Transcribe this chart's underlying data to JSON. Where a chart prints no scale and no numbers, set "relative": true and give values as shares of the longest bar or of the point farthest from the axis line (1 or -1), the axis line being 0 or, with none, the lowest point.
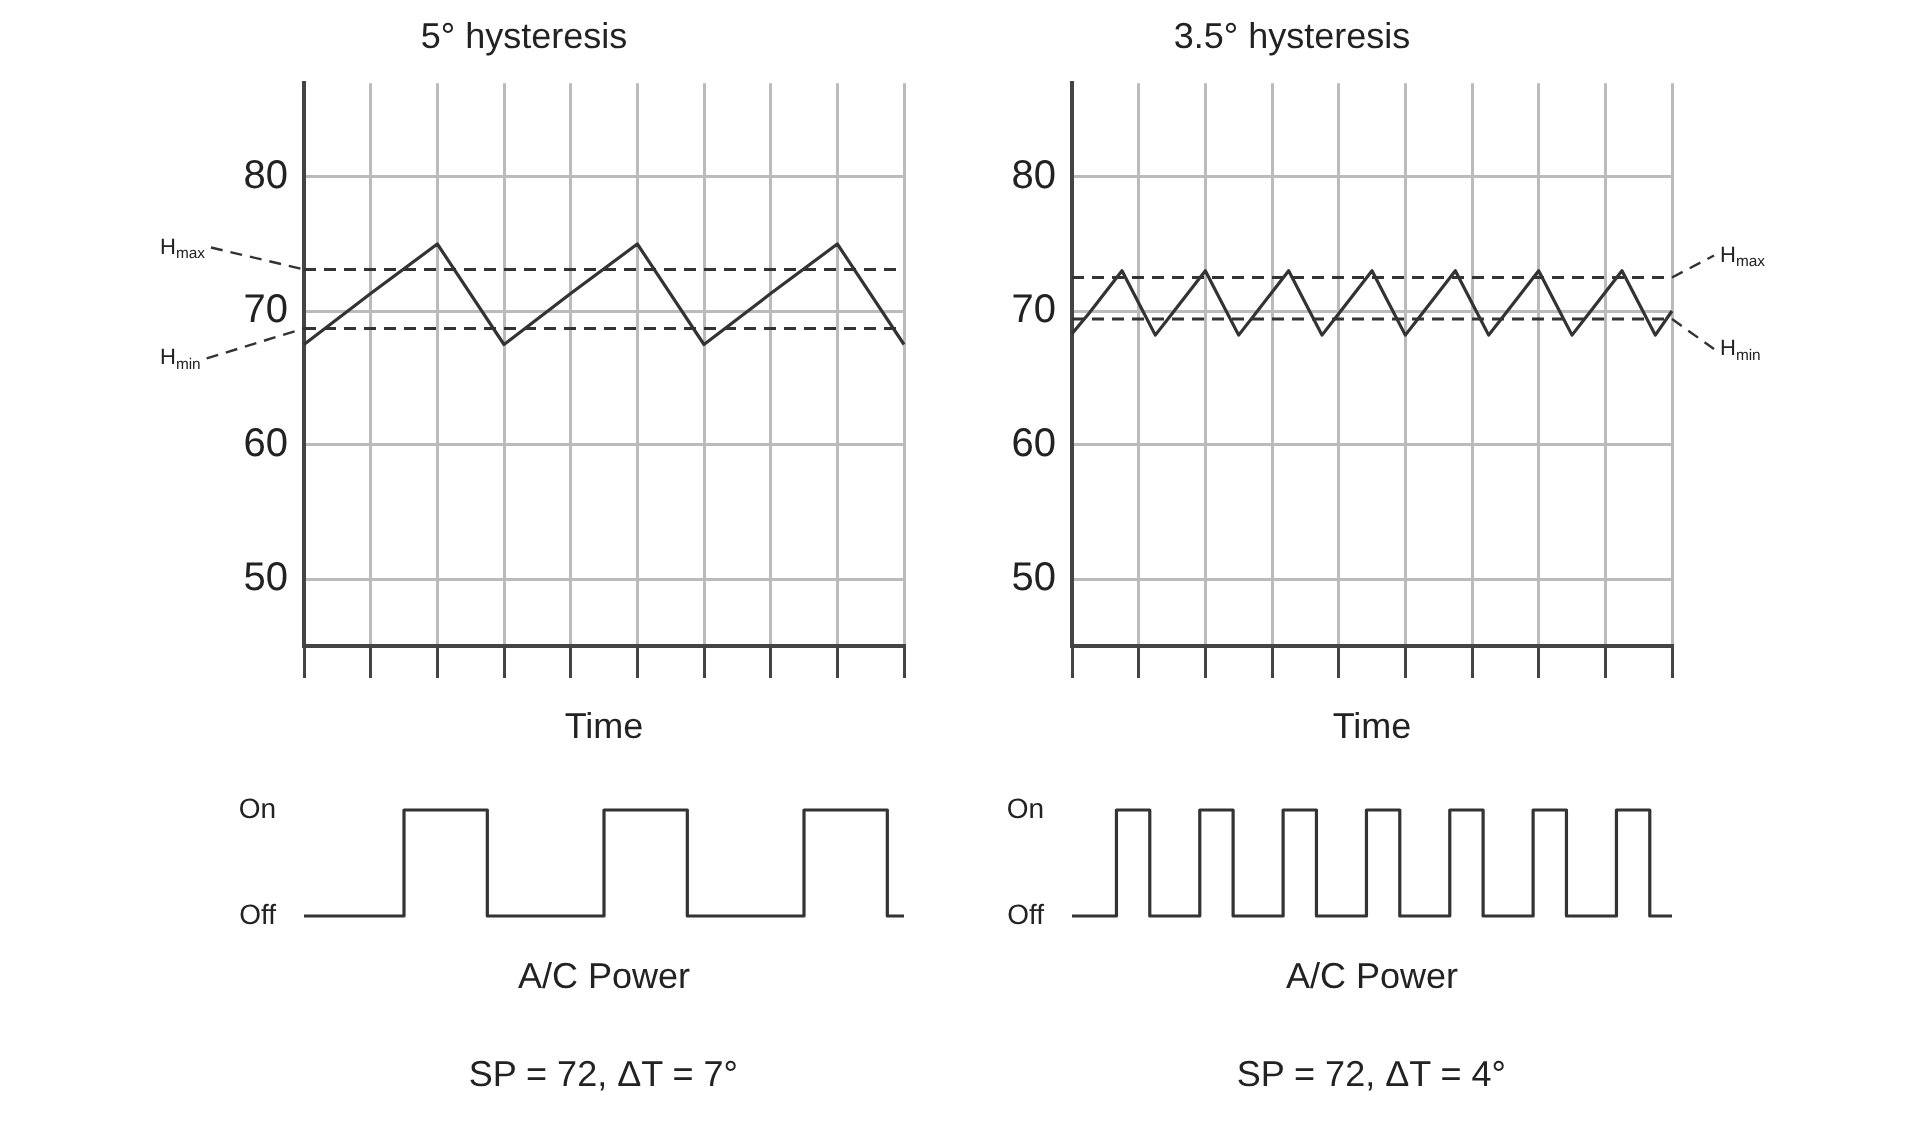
{
  "chart_data": [
    {
      "type": "line",
      "title": "5° hysteresis",
      "xlabel": "Time",
      "color": "#333333",
      "marker": "none",
      "grid": true,
      "tick_labels": "y",
      "categories": [
        null,
        null,
        null,
        null,
        null,
        null,
        null,
        null,
        null,
        null
      ],
      "values": [
        67.5,
        71.3,
        75,
        67.5,
        71.3,
        75,
        67.5,
        71.3,
        75,
        67.5
      ],
      "ylim": [
        45,
        87
      ],
      "yticks": [
        50,
        60,
        70,
        80
      ],
      "ref_lines": [
        {
          "axis": "y",
          "value": 73.1,
          "label": "H$_{max}$",
          "line_style": "dashed",
          "color": "#333333"
        },
        {
          "axis": "y",
          "value": 68.7,
          "label": "H$_{min}$",
          "line_style": "dashed",
          "color": "#333333"
        }
      ]
    },
    {
      "type": "line",
      "title": "3.5° hysteresis",
      "xlabel": "Time",
      "color": "#333333",
      "marker": "none",
      "grid": true,
      "tick_labels": "y",
      "categories": [
        null,
        null,
        null,
        null,
        null,
        null,
        null,
        null,
        null,
        null,
        null,
        null,
        null,
        null,
        null,
        null,
        null,
        null,
        null,
        null,
        null,
        null,
        null,
        null,
        null,
        null,
        null,
        null,
        null,
        null,
        null,
        null,
        null,
        null,
        null,
        null,
        null
      ],
      "values": [
        68.3,
        69.8,
        71.4,
        73,
        70.6,
        68.2,
        69.8,
        71.4,
        73,
        70.6,
        68.2,
        69.8,
        71.4,
        73,
        70.6,
        68.2,
        69.8,
        71.4,
        73,
        70.6,
        68.2,
        69.8,
        71.4,
        73,
        70.6,
        68.2,
        69.8,
        71.4,
        73,
        70.6,
        68.2,
        69.8,
        71.4,
        73,
        70.6,
        68.2,
        70
      ],
      "ylim": [
        45,
        87
      ],
      "yticks": [
        50,
        60,
        70,
        80
      ],
      "ref_lines": [
        {
          "axis": "y",
          "value": 72.5,
          "label": "H$_{max}$",
          "line_style": "dashed",
          "color": "#333333"
        },
        {
          "axis": "y",
          "value": 69.4,
          "label": "H$_{min}$",
          "line_style": "dashed",
          "color": "#333333"
        }
      ]
    },
    {
      "type": "step",
      "xlabel": "A/C Power",
      "color": "#333333",
      "marker": "none",
      "tick_labels": "y",
      "categories": [
        null,
        null,
        null,
        null,
        null,
        null,
        null,
        null,
        null,
        null,
        null,
        null,
        null,
        null,
        null,
        null,
        null,
        null,
        null,
        null,
        null,
        null,
        null,
        null,
        null,
        null,
        null,
        null,
        null,
        null,
        null,
        null,
        null,
        null,
        null,
        null,
        null
      ],
      "values": [
        0,
        0,
        0,
        0,
        0,
        0,
        1,
        1,
        1,
        1,
        1,
        0,
        0,
        0,
        0,
        0,
        0,
        0,
        1,
        1,
        1,
        1,
        1,
        0,
        0,
        0,
        0,
        0,
        0,
        0,
        1,
        1,
        1,
        1,
        1,
        0,
        0
      ],
      "relative": true,
      "annotations": [
        "On",
        "Off",
        "SP = 72, ΔT = 7°"
      ]
    },
    {
      "type": "step",
      "xlabel": "A/C Power",
      "color": "#333333",
      "marker": "none",
      "tick_labels": "y",
      "categories": [
        null,
        null,
        null,
        null,
        null,
        null,
        null,
        null,
        null,
        null,
        null,
        null,
        null,
        null,
        null,
        null,
        null,
        null,
        null,
        null,
        null,
        null,
        null,
        null,
        null,
        null,
        null,
        null,
        null,
        null,
        null,
        null,
        null,
        null,
        null,
        null,
        null,
        null,
        null,
        null,
        null,
        null,
        null,
        null,
        null,
        null,
        null,
        null,
        null,
        null,
        null,
        null,
        null,
        null,
        null,
        null,
        null,
        null,
        null,
        null,
        null,
        null,
        null,
        null,
        null,
        null,
        null,
        null,
        null,
        null,
        null,
        null,
        null,
        null,
        null,
        null,
        null,
        null,
        null,
        null,
        null,
        null,
        null,
        null,
        null,
        null,
        null,
        null,
        null,
        null,
        null,
        null,
        null,
        null,
        null,
        null,
        null,
        null,
        null,
        null,
        null,
        null,
        null,
        null,
        null,
        null,
        null,
        null,
        null
      ],
      "values": [
        0,
        0,
        0,
        0,
        0,
        0,
        0,
        0,
        1,
        1,
        1,
        1,
        1,
        1,
        0,
        0,
        0,
        0,
        0,
        0,
        0,
        0,
        0,
        1,
        1,
        1,
        1,
        1,
        1,
        0,
        0,
        0,
        0,
        0,
        0,
        0,
        0,
        0,
        1,
        1,
        1,
        1,
        1,
        1,
        0,
        0,
        0,
        0,
        0,
        0,
        0,
        0,
        0,
        1,
        1,
        1,
        1,
        1,
        1,
        0,
        0,
        0,
        0,
        0,
        0,
        0,
        0,
        0,
        1,
        1,
        1,
        1,
        1,
        1,
        0,
        0,
        0,
        0,
        0,
        0,
        0,
        0,
        0,
        1,
        1,
        1,
        1,
        1,
        1,
        0,
        0,
        0,
        0,
        0,
        0,
        0,
        0,
        0,
        1,
        1,
        1,
        1,
        1,
        1,
        0,
        0,
        0,
        0,
        0
      ],
      "relative": true,
      "annotations": [
        "On",
        "Off",
        "SP = 72, ΔT = 4°"
      ]
    }
  ]
}
